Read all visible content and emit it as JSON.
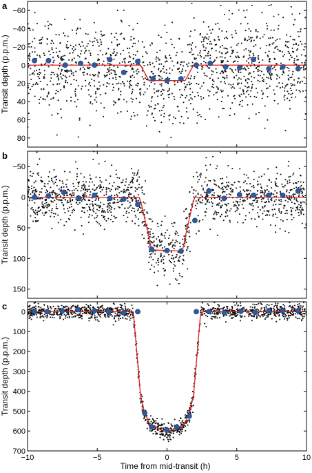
{
  "xlabel": "Time from mid-transit (h)",
  "colors": {
    "raw": "#111111",
    "binned": "#2d5aa0",
    "model": "#e0201b"
  },
  "chart_data": [
    {
      "panel": "a",
      "type": "scatter",
      "xlabel": "",
      "ylabel": "Transit depth (p.p.m.)",
      "xlim": [
        -10,
        10
      ],
      "ylim": [
        90,
        -70
      ],
      "yaxis_inverted": true,
      "yticks": [
        -60,
        -40,
        -20,
        0,
        20,
        40,
        60,
        80
      ],
      "xticks": [
        -10,
        -5,
        0,
        5,
        10
      ],
      "grid": false,
      "raw_scatter_sd": 25,
      "model": {
        "name": "",
        "x": [
          -10,
          -1.9,
          -1.3,
          1.3,
          1.9,
          10
        ],
        "y": [
          0,
          0,
          17,
          17,
          0,
          0
        ]
      },
      "binned": {
        "x": [
          -9.5,
          -8.5,
          -7.3,
          -6.2,
          -5.2,
          -4.1,
          -3.1,
          -2.1,
          -1.0,
          0.0,
          1.0,
          2.1,
          3.1,
          4.2,
          5.2,
          6.2,
          7.3,
          8.3,
          9.4
        ],
        "y": [
          -5,
          -5,
          0,
          -2,
          0,
          -6,
          8,
          -4,
          15,
          17,
          15,
          0,
          -2,
          2,
          3,
          -6,
          4,
          2,
          4
        ]
      }
    },
    {
      "panel": "b",
      "type": "scatter",
      "xlabel": "",
      "ylabel": "Transit depth (p.p.m.)",
      "xlim": [
        -10,
        10
      ],
      "ylim": [
        165,
        -75
      ],
      "yaxis_inverted": true,
      "yticks": [
        -50,
        0,
        50,
        100,
        150
      ],
      "xticks": [
        -10,
        -5,
        0,
        5,
        10
      ],
      "grid": false,
      "raw_scatter_sd": 22,
      "model": {
        "name": "",
        "x": [
          -10,
          -2.0,
          -1.85,
          -1.4,
          -1.1,
          1.1,
          1.4,
          1.85,
          2.0,
          10
        ],
        "y": [
          0,
          0,
          10,
          55,
          86,
          88,
          55,
          10,
          0,
          0
        ]
      },
      "binned": {
        "x": [
          -9.5,
          -8.5,
          -7.4,
          -6.3,
          -5.2,
          -4.1,
          -3.1,
          -2.1,
          -1.1,
          0.0,
          1.0,
          2.0,
          3.0,
          4.1,
          5.2,
          6.2,
          7.3,
          8.3,
          9.4
        ],
        "y": [
          0,
          -2,
          -8,
          2,
          -3,
          2,
          3,
          12,
          85,
          87,
          88,
          38,
          -10,
          2,
          -4,
          -3,
          -3,
          -3,
          -10
        ]
      }
    },
    {
      "panel": "c",
      "type": "scatter",
      "xlabel": "Time from mid-transit (h)",
      "ylabel": "Transit depth (p.p.m.)",
      "xlim": [
        -10,
        10
      ],
      "ylim": [
        700,
        -50
      ],
      "yaxis_inverted": true,
      "yticks": [
        0,
        100,
        200,
        300,
        400,
        500,
        600,
        700
      ],
      "xticks": [
        -10,
        -5,
        0,
        5,
        10
      ],
      "grid": false,
      "raw_scatter_sd": 20,
      "model": {
        "name": "",
        "x": [
          -10,
          -2.6,
          -2.4,
          -2.2,
          -1.9,
          -1.6,
          -1.2,
          0,
          1.2,
          1.6,
          1.9,
          2.2,
          2.4,
          2.6,
          10
        ],
        "y": [
          0,
          0,
          15,
          180,
          420,
          510,
          570,
          605,
          570,
          510,
          420,
          180,
          15,
          0,
          0
        ]
      },
      "binned": {
        "x": [
          -9.5,
          -8.6,
          -7.5,
          -6.4,
          -5.2,
          -4.2,
          -3.1,
          -2.1,
          -1.6,
          -1.1,
          0.0,
          0.7,
          1.6,
          2.1,
          3.0,
          4.1,
          5.3,
          6.3,
          7.3,
          8.3,
          9.4
        ],
        "y": [
          0,
          0,
          -5,
          -10,
          -5,
          0,
          5,
          0,
          510,
          580,
          595,
          580,
          525,
          0,
          0,
          5,
          -2,
          3,
          -5,
          -5,
          -5
        ]
      }
    }
  ]
}
